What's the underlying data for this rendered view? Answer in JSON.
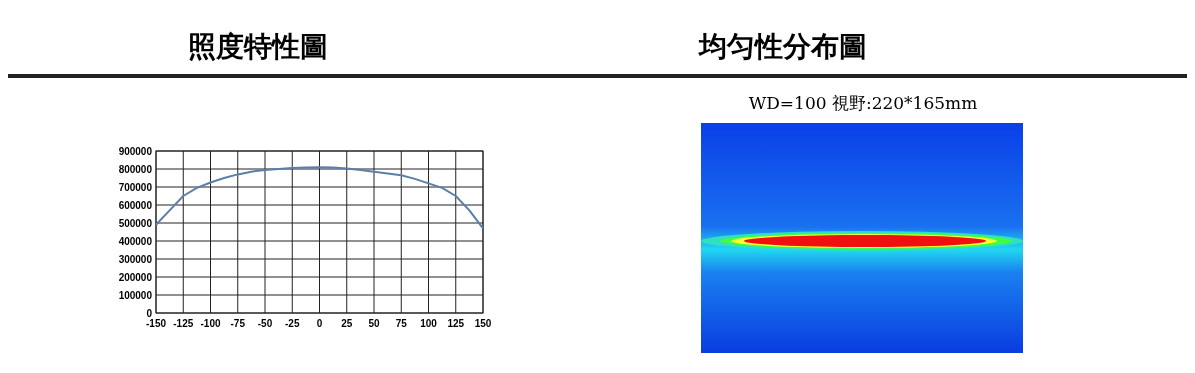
{
  "chart_data": [
    {
      "type": "line",
      "title": "照度特性圖",
      "x": [
        -150,
        -137.5,
        -125,
        -112.5,
        -100,
        -87.5,
        -75,
        -62.5,
        -50,
        -37.5,
        -25,
        -12.5,
        0,
        12.5,
        25,
        37.5,
        50,
        62.5,
        75,
        87.5,
        100,
        112.5,
        125,
        137.5,
        150
      ],
      "series": [
        {
          "color": "#5b7fa6",
          "values": [
            490000,
            570000,
            650000,
            695000,
            725000,
            750000,
            770000,
            785000,
            795000,
            800000,
            805000,
            808000,
            810000,
            808000,
            803000,
            795000,
            785000,
            775000,
            765000,
            745000,
            720000,
            695000,
            650000,
            570000,
            470000
          ]
        }
      ],
      "xlim": [
        -150,
        150
      ],
      "xticks": [
        -150,
        -125,
        -100,
        -75,
        -50,
        -25,
        0,
        25,
        50,
        75,
        100,
        125,
        150
      ],
      "ylim": [
        0,
        900000
      ],
      "yticks": [
        0,
        100000,
        200000,
        300000,
        400000,
        500000,
        600000,
        700000,
        800000,
        900000
      ],
      "grid": true
    },
    {
      "type": "other",
      "title": "均匀性分布圖",
      "subtitle": "WD=100 視野:220*165mm"
    }
  ]
}
